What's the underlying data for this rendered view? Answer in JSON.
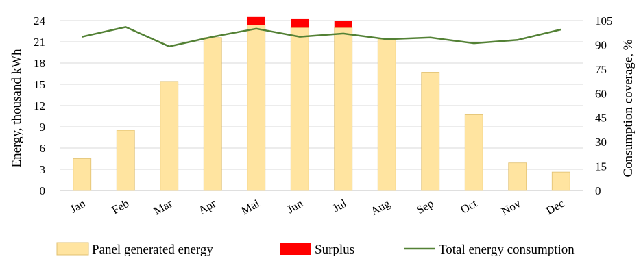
{
  "chart_data": {
    "type": "bar",
    "categories": [
      "Jan",
      "Feb",
      "Mar",
      "Apr",
      "Mai",
      "Jun",
      "Jul",
      "Aug",
      "Sep",
      "Oct",
      "Nov",
      "Dec"
    ],
    "series": [
      {
        "name": "Panel generated energy",
        "kind": "bar",
        "axis": "left",
        "color": "#FFE4A0",
        "stroke": "#E0C070",
        "values": [
          4.5,
          8.5,
          15.4,
          21.6,
          23.4,
          23.0,
          23.0,
          21.4,
          16.7,
          10.7,
          3.9,
          2.6
        ]
      },
      {
        "name": "Surplus",
        "kind": "bar-stacked",
        "axis": "left",
        "color": "#FF0000",
        "values": [
          0,
          0,
          0,
          0,
          1.1,
          1.2,
          1.0,
          0,
          0,
          0,
          0,
          0
        ]
      },
      {
        "name": "Total energy consumption",
        "kind": "line",
        "axis": "right",
        "color": "#538135",
        "values": [
          95,
          101,
          89,
          95,
          100,
          95,
          97,
          93.5,
          94.5,
          91,
          93,
          99.5
        ]
      }
    ],
    "ylabel": "Energy, thousand kWh",
    "y2label": "Consumption coverage, %",
    "ylim": [
      0,
      24
    ],
    "yticks": [
      "0",
      "3",
      "6",
      "9",
      "12",
      "15",
      "18",
      "21",
      "24"
    ],
    "y2lim": [
      0,
      105
    ],
    "y2ticks": [
      "0",
      "15",
      "30",
      "45",
      "60",
      "75",
      "90",
      "105"
    ],
    "grid": true,
    "legend_position": "bottom"
  }
}
